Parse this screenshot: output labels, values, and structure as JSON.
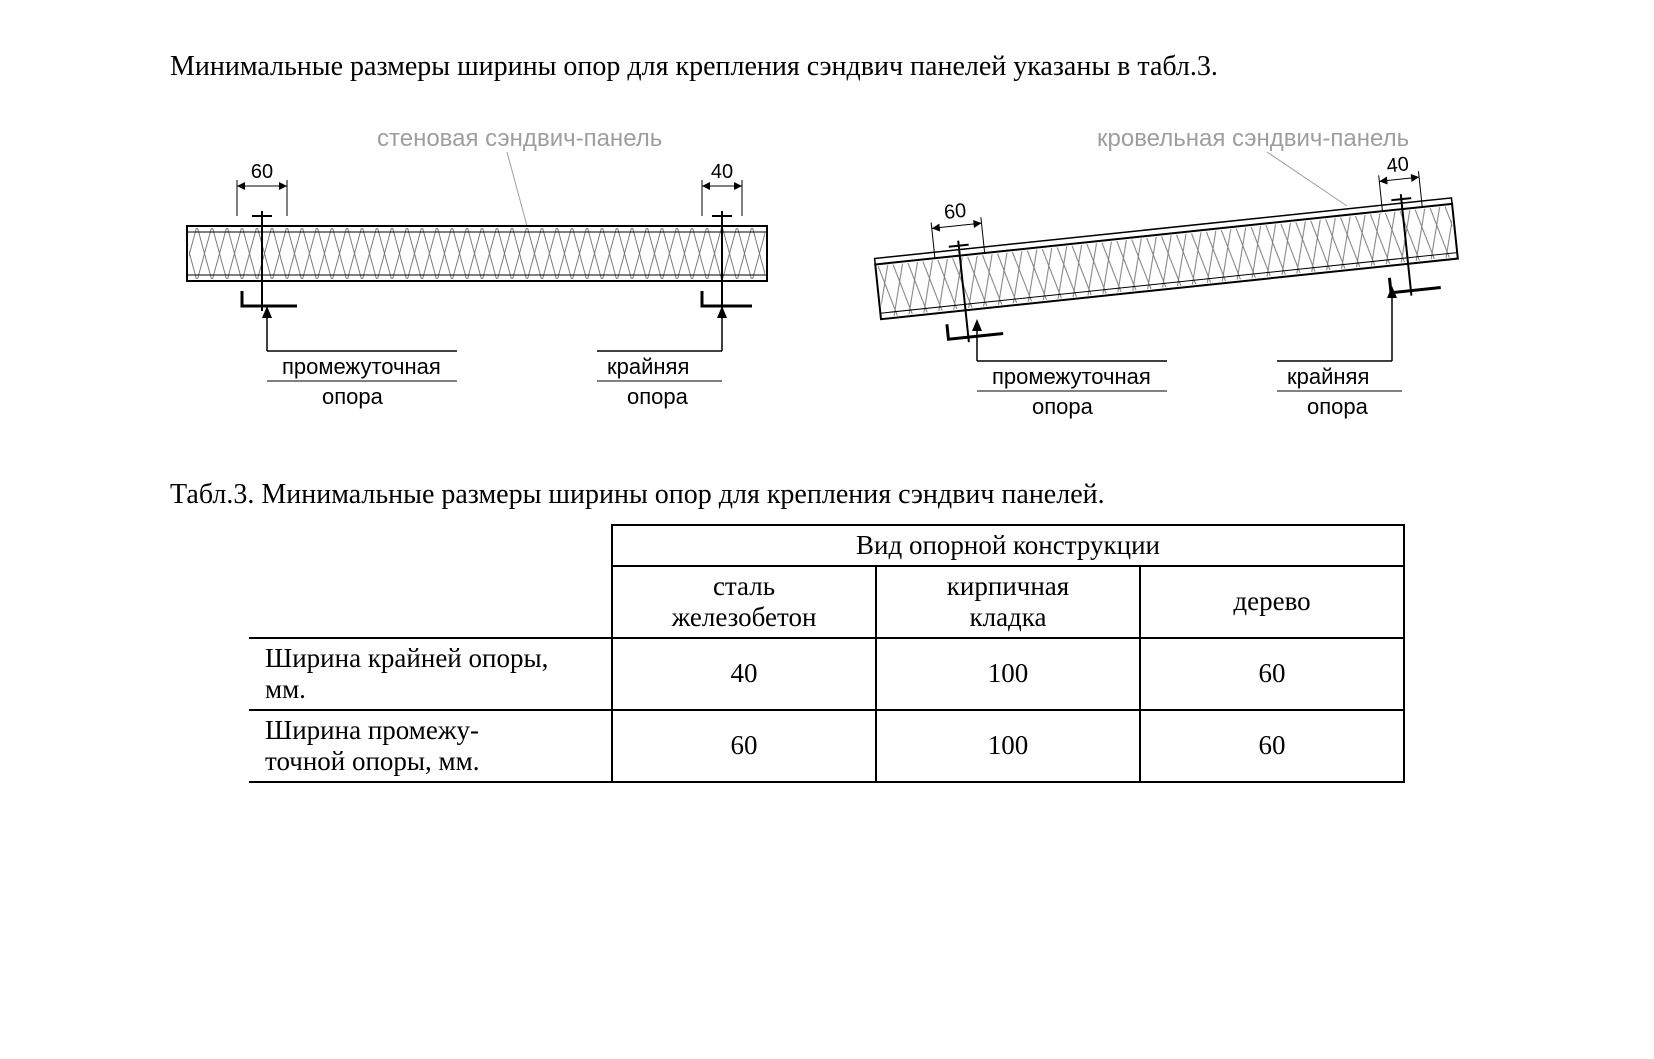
{
  "intro_text": "Минимальные размеры ширины опор для крепления сэндвич панелей указаны в табл.3.",
  "caption_text": "Табл.3. Минимальные размеры ширины опор для крепления сэндвич панелей.",
  "diagram_left": {
    "title": "стеновая сэндвич-панель",
    "title_color": "#9e9e9e",
    "dim_left": "60",
    "dim_right": "40",
    "label_left_line1": "промежуточная",
    "label_left_line2": "опора",
    "label_right_line1": "крайняя",
    "label_right_line2": "опора",
    "label_color": "#000000",
    "line_color": "#000000",
    "hatch_color": "#7a7a7a",
    "panel_fill": "#ffffff",
    "angle_deg": 0
  },
  "diagram_right": {
    "title": "кровельная сэндвич-панель",
    "title_color": "#9e9e9e",
    "dim_left": "60",
    "dim_right": "40",
    "label_left_line1": "промежуточная",
    "label_left_line2": "опора",
    "label_right_line1": "крайняя",
    "label_right_line2": "опора",
    "label_color": "#000000",
    "line_color": "#000000",
    "hatch_color": "#7a7a7a",
    "panel_fill": "#ffffff",
    "angle_deg": -6
  },
  "table": {
    "header_group": "Вид опорной конструкции",
    "columns": [
      "сталь железобетон",
      "кирпичная кладка",
      "дерево"
    ],
    "rows": [
      {
        "label": "Ширина крайней опоры, мм.",
        "values": [
          "40",
          "100",
          "60"
        ]
      },
      {
        "label": "Ширина промежу-\nточной опоры, мм.",
        "values": [
          "60",
          "100",
          "60"
        ]
      }
    ],
    "border_color": "#000000",
    "font_size_pt": 20
  },
  "styling": {
    "page_bg": "#ffffff",
    "text_color": "#000000",
    "body_font": "Times New Roman",
    "diagram_label_font": "Arial"
  }
}
